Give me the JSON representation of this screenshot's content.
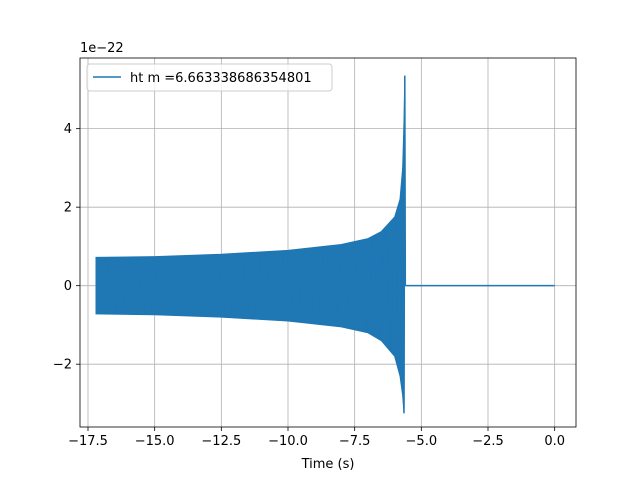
{
  "chart_data": {
    "type": "line",
    "title": "",
    "xlabel": "Time (s)",
    "ylabel": "",
    "y_offset_text": "1e−22",
    "xlim": [
      -17.8,
      0.8
    ],
    "ylim": [
      -3.6,
      5.8
    ],
    "grid": true,
    "legend_position": "top-left",
    "x_ticks": [
      -17.5,
      -15.0,
      -12.5,
      -10.0,
      -7.5,
      -5.0,
      -2.5,
      0.0
    ],
    "x_tick_labels": [
      "−17.5",
      "−15.0",
      "−12.5",
      "−10.0",
      "−7.5",
      "−5.0",
      "−2.5",
      "0.0"
    ],
    "y_ticks": [
      -2,
      0,
      2,
      4
    ],
    "y_tick_labels": [
      "−2",
      "0",
      "2",
      "4"
    ],
    "series": [
      {
        "name": "ht m =6.663338686354801",
        "color": "#1f77b4",
        "signal": {
          "start_time": -17.2,
          "merger_time": -5.6,
          "end_time": 0.0,
          "upper_envelope": [
            [
              -17.2,
              0.72
            ],
            [
              -15.0,
              0.74
            ],
            [
              -12.5,
              0.8
            ],
            [
              -10.0,
              0.9
            ],
            [
              -8.0,
              1.05
            ],
            [
              -7.0,
              1.2
            ],
            [
              -6.5,
              1.38
            ],
            [
              -6.0,
              1.75
            ],
            [
              -5.8,
              2.2
            ],
            [
              -5.7,
              3.0
            ],
            [
              -5.65,
              4.2
            ],
            [
              -5.62,
              5.35
            ]
          ],
          "lower_envelope": [
            [
              -17.2,
              -0.72
            ],
            [
              -15.0,
              -0.74
            ],
            [
              -12.5,
              -0.8
            ],
            [
              -10.0,
              -0.9
            ],
            [
              -8.0,
              -1.05
            ],
            [
              -7.0,
              -1.2
            ],
            [
              -6.5,
              -1.4
            ],
            [
              -6.0,
              -1.8
            ],
            [
              -5.8,
              -2.3
            ],
            [
              -5.7,
              -2.8
            ],
            [
              -5.65,
              -3.25
            ]
          ],
          "post_merger_value": 0.0
        }
      }
    ]
  }
}
